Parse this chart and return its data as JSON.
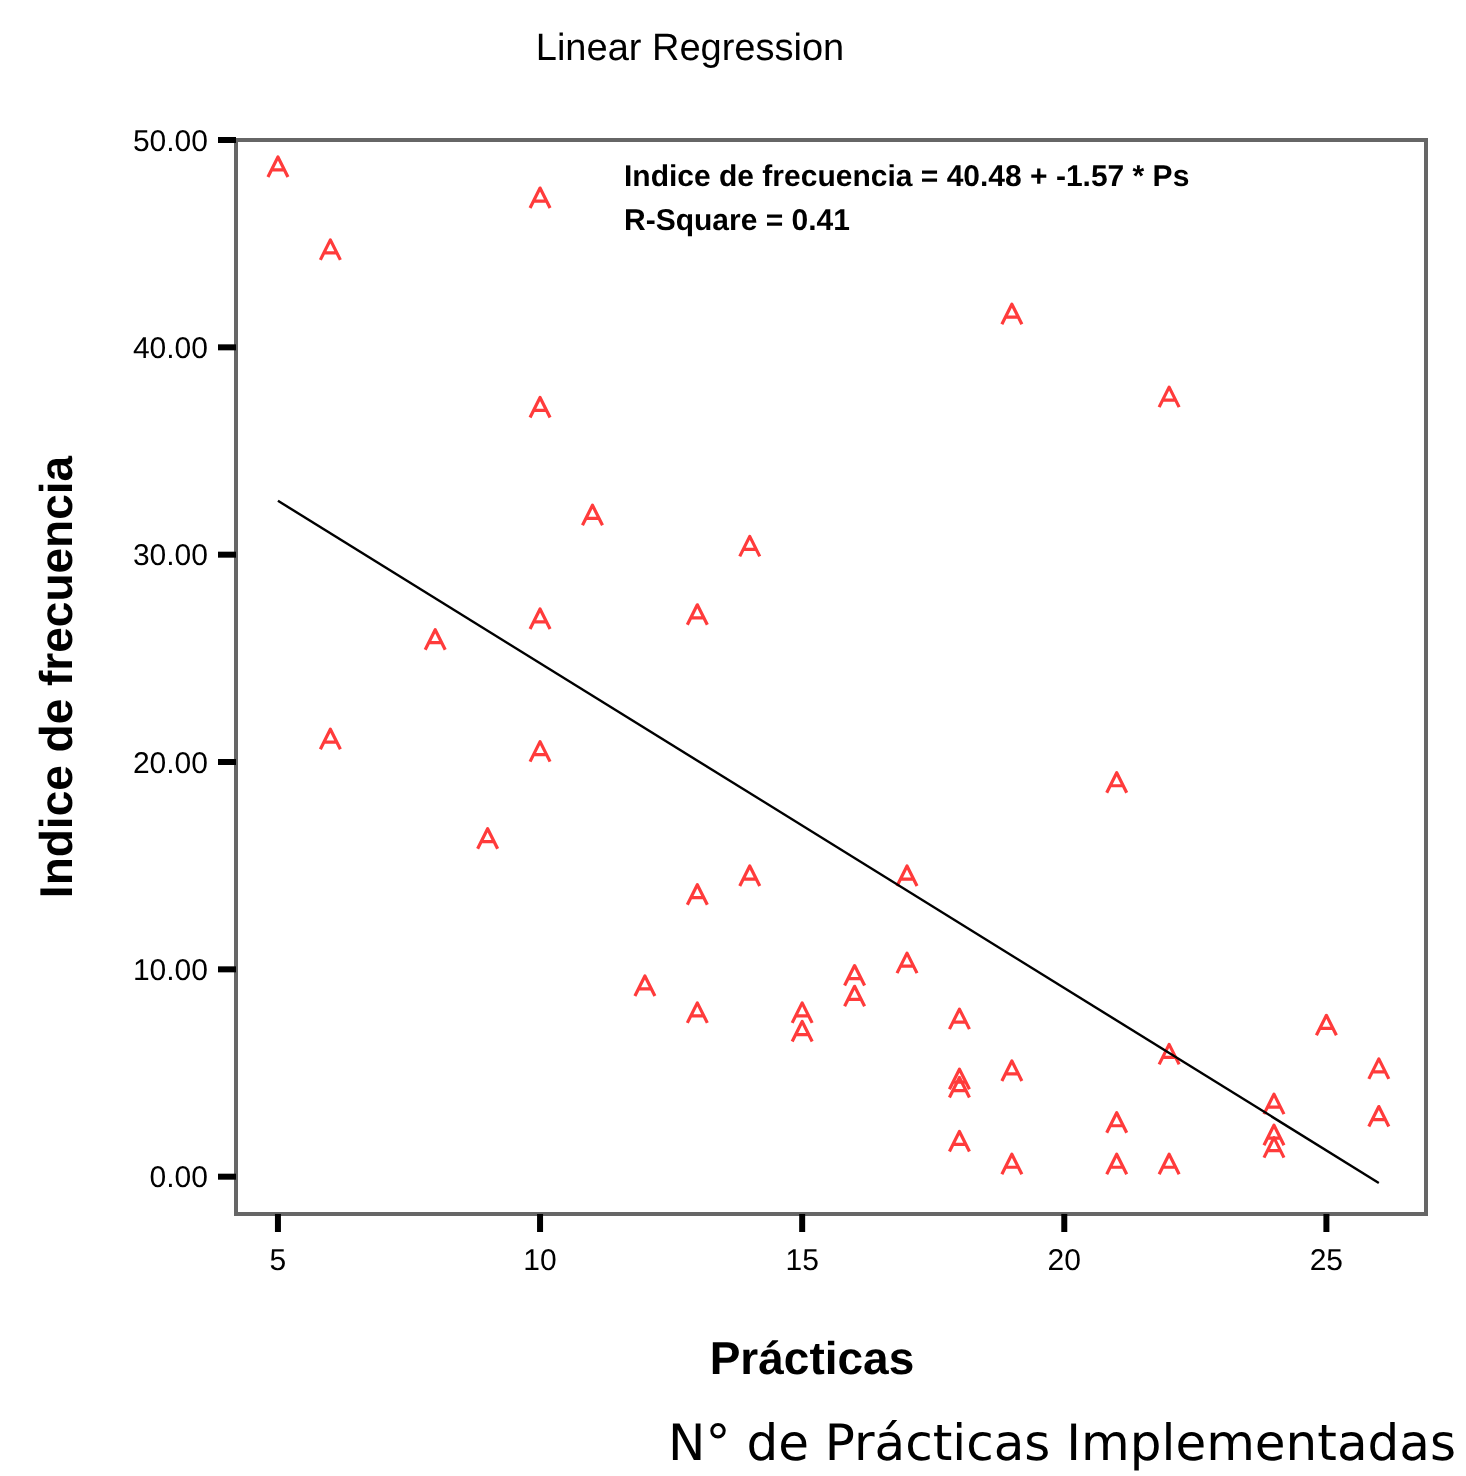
{
  "chart_data": {
    "type": "scatter",
    "title": "Linear Regression",
    "xlabel": "Prácticas",
    "ylabel": "Indice de frecuencia",
    "annotations": [
      "Indice de frecuencia = 40.48 + -1.57 * Ps",
      "R-Square = 0.41",
      "N° de Prácticas Implementadas"
    ],
    "xlim": [
      4.2,
      26.9
    ],
    "xticks": [
      5,
      10,
      15,
      20,
      25
    ],
    "ylim": [
      -1.8,
      50
    ],
    "yticks": [
      {
        "value": 0,
        "label": "0.00"
      },
      {
        "value": 10,
        "label": "10.00"
      },
      {
        "value": 20,
        "label": "20.00"
      },
      {
        "value": 30,
        "label": "30.00"
      },
      {
        "value": 40,
        "label": "40.00"
      },
      {
        "value": 50,
        "label": "50.00"
      }
    ],
    "grid": false,
    "series": [
      {
        "color": "#ff3b3b",
        "x": [
          5,
          6,
          10,
          10,
          11,
          14,
          13,
          10,
          8,
          6,
          10,
          9,
          13,
          14,
          17,
          16,
          16,
          17,
          12,
          13,
          15,
          15,
          19,
          22,
          21,
          18,
          18,
          18,
          19,
          18,
          19,
          21,
          21,
          22,
          22,
          25,
          24,
          24,
          24,
          26,
          26
        ],
        "values": [
          48.7,
          44.7,
          47.2,
          37.1,
          31.9,
          30.4,
          27.1,
          26.9,
          25.9,
          21.1,
          20.5,
          16.3,
          13.6,
          14.5,
          14.5,
          9.7,
          8.7,
          10.3,
          9.2,
          7.9,
          7.9,
          7.0,
          41.6,
          37.6,
          19.0,
          7.6,
          4.7,
          4.3,
          5.1,
          1.7,
          0.6,
          2.6,
          0.6,
          0.6,
          5.9,
          7.3,
          3.5,
          2.0,
          1.4,
          5.2,
          2.9
        ]
      },
      {
        "type": "line",
        "color": "#000000",
        "x": [
          5,
          26
        ],
        "values": [
          32.6,
          -0.3
        ]
      }
    ]
  }
}
